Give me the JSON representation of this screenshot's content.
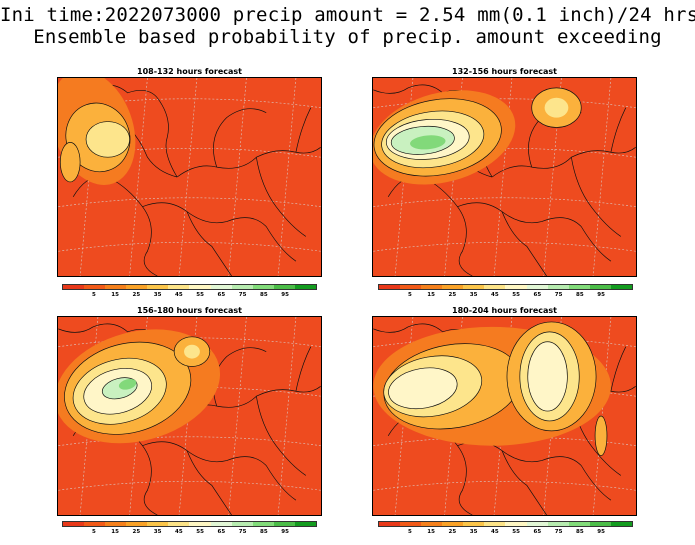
{
  "header": {
    "line1": "Ini time:2022073000 precip amount = 2.54 mm(0.1 inch)/24 hrs",
    "line2": "Ensemble based probability of precip. amount exceeding"
  },
  "panels": [
    {
      "title": "108-132 hours forecast"
    },
    {
      "title": "132-156 hours forecast"
    },
    {
      "title": "156-180 hours forecast"
    },
    {
      "title": "180-204 hours forecast"
    }
  ],
  "colorbar": {
    "colors": [
      "#e8391a",
      "#f25a18",
      "#f5801c",
      "#f9a228",
      "#fbc54a",
      "#fde488",
      "#fff7c4",
      "#e2f7d6",
      "#b7ecb0",
      "#82dc7a",
      "#4bbd48",
      "#139c1f"
    ],
    "labels": [
      "5",
      "15",
      "25",
      "35",
      "45",
      "55",
      "65",
      "75",
      "85",
      "95"
    ]
  },
  "map_colors": {
    "base": "#ee4b1f",
    "ring1": "#f57b20",
    "ring2": "#fbb13c",
    "ring3": "#fde58c",
    "ring4": "#fff6c8",
    "ring5": "#c9f1c0",
    "ring6": "#82d97a"
  }
}
